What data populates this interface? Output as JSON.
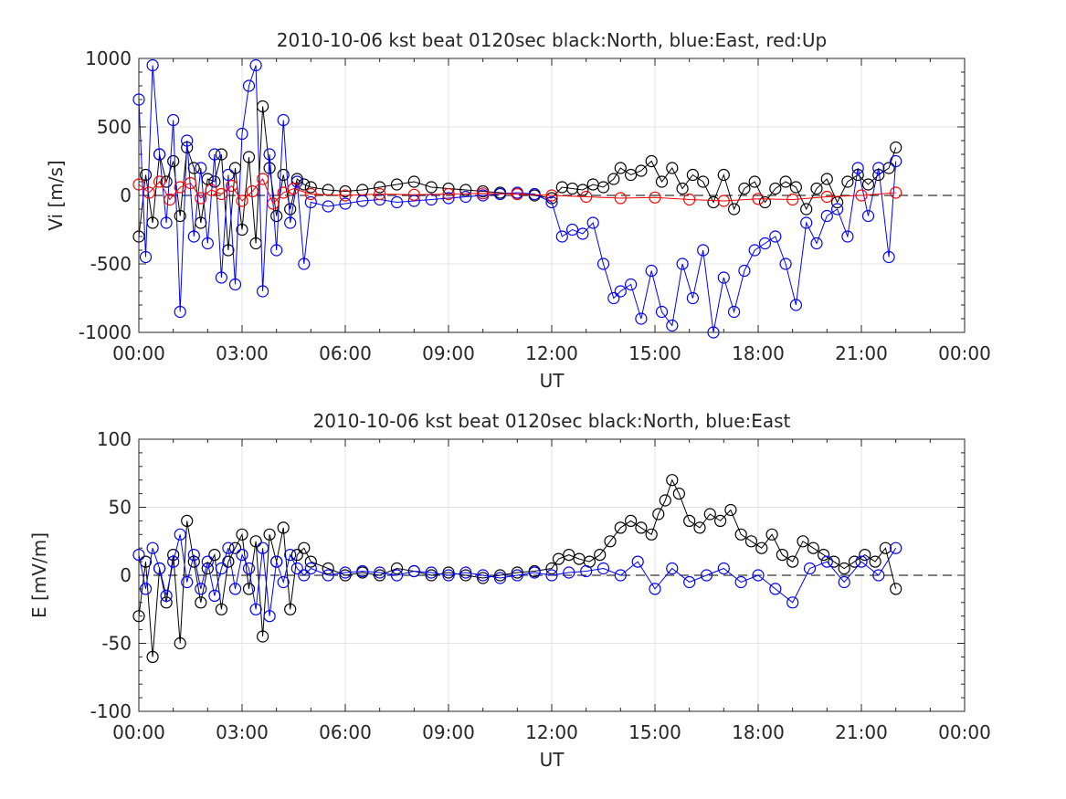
{
  "chart_data": [
    {
      "type": "scatter",
      "title": "2010-10-06 kst beat 0120sec black:North, blue:East, red:Up",
      "xlabel": "UT",
      "ylabel": "Vi [m/s]",
      "xlim_hours": [
        0,
        24
      ],
      "ylim": [
        -1000,
        1000
      ],
      "grid": true,
      "x_tick_labels": [
        "00:00",
        "03:00",
        "06:00",
        "09:00",
        "12:00",
        "15:00",
        "18:00",
        "21:00",
        "00:00"
      ],
      "y_ticks": [
        -1000,
        -500,
        0,
        500,
        1000
      ],
      "y_tick_labels": [
        "-1000",
        "-500",
        "0",
        "500",
        "1000"
      ],
      "zero_line_dashed": true,
      "series": [
        {
          "name": "North",
          "color": "#000000",
          "marker": "circle",
          "x_hours": [
            0.0,
            0.2,
            0.4,
            0.6,
            0.8,
            1.0,
            1.2,
            1.4,
            1.6,
            1.8,
            2.0,
            2.2,
            2.4,
            2.6,
            2.8,
            3.0,
            3.2,
            3.4,
            3.6,
            3.8,
            4.0,
            4.2,
            4.4,
            4.6,
            4.8,
            5.0,
            5.5,
            6.0,
            6.5,
            7.0,
            7.5,
            8.0,
            8.5,
            9.0,
            9.5,
            10.0,
            10.5,
            11.0,
            11.5,
            12.0,
            12.3,
            12.6,
            12.9,
            13.2,
            13.5,
            13.8,
            14.0,
            14.3,
            14.6,
            14.9,
            15.2,
            15.5,
            15.8,
            16.1,
            16.4,
            16.7,
            17.0,
            17.3,
            17.6,
            17.9,
            18.2,
            18.5,
            18.8,
            19.1,
            19.4,
            19.7,
            20.0,
            20.3,
            20.6,
            20.9,
            21.2,
            21.5,
            21.8,
            22.0
          ],
          "values": [
            -300,
            150,
            -200,
            300,
            100,
            250,
            -150,
            350,
            200,
            -200,
            120,
            100,
            300,
            -400,
            200,
            -250,
            280,
            -350,
            650,
            200,
            -150,
            150,
            -100,
            120,
            80,
            60,
            40,
            30,
            40,
            60,
            80,
            100,
            60,
            50,
            40,
            30,
            20,
            10,
            0,
            -20,
            60,
            50,
            40,
            80,
            60,
            120,
            200,
            150,
            180,
            250,
            100,
            200,
            50,
            150,
            100,
            -50,
            150,
            -100,
            50,
            100,
            -50,
            50,
            100,
            60,
            -100,
            50,
            120,
            -50,
            100,
            150,
            80,
            150,
            200,
            350
          ]
        },
        {
          "name": "East",
          "color": "#0000ff",
          "marker": "circle",
          "x_hours": [
            0.0,
            0.2,
            0.4,
            0.6,
            0.8,
            1.0,
            1.2,
            1.4,
            1.6,
            1.8,
            2.0,
            2.2,
            2.4,
            2.6,
            2.8,
            3.0,
            3.2,
            3.4,
            3.6,
            3.8,
            4.0,
            4.2,
            4.4,
            4.6,
            4.8,
            5.0,
            5.5,
            6.0,
            6.5,
            7.0,
            7.5,
            8.0,
            8.5,
            9.0,
            9.5,
            10.0,
            10.5,
            11.0,
            11.5,
            12.0,
            12.3,
            12.6,
            12.9,
            13.2,
            13.5,
            13.8,
            14.0,
            14.3,
            14.6,
            14.9,
            15.2,
            15.5,
            15.8,
            16.1,
            16.4,
            16.7,
            17.0,
            17.3,
            17.6,
            17.9,
            18.2,
            18.5,
            18.8,
            19.1,
            19.4,
            19.7,
            20.0,
            20.3,
            20.6,
            20.9,
            21.2,
            21.5,
            21.8,
            22.0
          ],
          "values": [
            700,
            -450,
            950,
            300,
            -200,
            550,
            -850,
            400,
            -300,
            200,
            -350,
            300,
            -600,
            150,
            -650,
            450,
            800,
            950,
            -700,
            300,
            -400,
            550,
            -200,
            100,
            -500,
            -50,
            -80,
            -60,
            -40,
            -30,
            -50,
            -40,
            -30,
            -20,
            -10,
            0,
            10,
            20,
            10,
            -50,
            -300,
            -250,
            -280,
            -200,
            -500,
            -750,
            -700,
            -650,
            -900,
            -550,
            -850,
            -950,
            -500,
            -750,
            -400,
            -1000,
            -600,
            -850,
            -550,
            -400,
            -350,
            -300,
            -500,
            -800,
            -200,
            -350,
            -150,
            -100,
            -300,
            200,
            -150,
            200,
            -450,
            250
          ]
        },
        {
          "name": "Up",
          "color": "#ff0000",
          "marker": "circle",
          "x_hours": [
            0.0,
            0.3,
            0.6,
            0.9,
            1.2,
            1.5,
            1.8,
            2.1,
            2.4,
            2.7,
            3.0,
            3.3,
            3.6,
            3.9,
            4.2,
            4.5,
            5.0,
            6.0,
            7.0,
            8.0,
            9.0,
            10.0,
            11.0,
            12.0,
            13.0,
            14.0,
            15.0,
            16.0,
            17.0,
            18.0,
            19.0,
            20.0,
            21.0,
            22.0
          ],
          "values": [
            80,
            20,
            100,
            -30,
            60,
            90,
            -20,
            40,
            10,
            70,
            -40,
            30,
            120,
            -60,
            20,
            50,
            10,
            0,
            10,
            5,
            10,
            15,
            10,
            0,
            -10,
            -20,
            -15,
            -30,
            -40,
            -25,
            -30,
            -10,
            0,
            20
          ]
        }
      ]
    },
    {
      "type": "scatter",
      "title": "2010-10-06 kst beat 0120sec black:North, blue:East",
      "xlabel": "UT",
      "ylabel": "E [mV/m]",
      "xlim_hours": [
        0,
        24
      ],
      "ylim": [
        -100,
        100
      ],
      "grid": true,
      "x_tick_labels": [
        "00:00",
        "03:00",
        "06:00",
        "09:00",
        "12:00",
        "15:00",
        "18:00",
        "21:00",
        "00:00"
      ],
      "y_ticks": [
        -100,
        -50,
        0,
        50,
        100
      ],
      "y_tick_labels": [
        "-100",
        "-50",
        "0",
        "50",
        "100"
      ],
      "zero_line_dashed": true,
      "series": [
        {
          "name": "North",
          "color": "#000000",
          "marker": "circle",
          "x_hours": [
            0.0,
            0.2,
            0.4,
            0.6,
            0.8,
            1.0,
            1.2,
            1.4,
            1.6,
            1.8,
            2.0,
            2.2,
            2.4,
            2.6,
            2.8,
            3.0,
            3.2,
            3.4,
            3.6,
            3.8,
            4.0,
            4.2,
            4.4,
            4.6,
            4.8,
            5.0,
            5.5,
            6.0,
            6.5,
            7.0,
            7.5,
            8.0,
            8.5,
            9.0,
            9.5,
            10.0,
            10.5,
            11.0,
            11.5,
            12.0,
            12.2,
            12.5,
            12.8,
            13.1,
            13.4,
            13.7,
            14.0,
            14.3,
            14.6,
            14.9,
            15.1,
            15.3,
            15.5,
            15.7,
            16.0,
            16.3,
            16.6,
            16.9,
            17.2,
            17.5,
            17.8,
            18.1,
            18.4,
            18.7,
            19.0,
            19.3,
            19.6,
            19.9,
            20.2,
            20.5,
            20.8,
            21.1,
            21.4,
            21.7,
            22.0
          ],
          "values": [
            -30,
            10,
            -60,
            5,
            -20,
            15,
            -50,
            40,
            10,
            -20,
            5,
            15,
            -25,
            10,
            20,
            30,
            -10,
            25,
            -45,
            30,
            10,
            35,
            -25,
            15,
            20,
            10,
            5,
            0,
            2,
            0,
            5,
            3,
            0,
            2,
            0,
            -2,
            0,
            2,
            3,
            5,
            12,
            15,
            12,
            10,
            15,
            25,
            35,
            40,
            35,
            30,
            45,
            55,
            70,
            60,
            40,
            35,
            45,
            40,
            48,
            30,
            25,
            20,
            30,
            15,
            10,
            25,
            20,
            15,
            10,
            5,
            10,
            15,
            10,
            20,
            -10
          ]
        },
        {
          "name": "East",
          "color": "#0000ff",
          "marker": "circle",
          "x_hours": [
            0.0,
            0.2,
            0.4,
            0.6,
            0.8,
            1.0,
            1.2,
            1.4,
            1.6,
            1.8,
            2.0,
            2.2,
            2.4,
            2.6,
            2.8,
            3.0,
            3.2,
            3.4,
            3.6,
            3.8,
            4.0,
            4.2,
            4.4,
            4.6,
            4.8,
            5.0,
            5.5,
            6.0,
            6.5,
            7.0,
            7.5,
            8.0,
            8.5,
            9.0,
            9.5,
            10.0,
            10.5,
            11.0,
            11.5,
            12.0,
            12.5,
            13.0,
            13.5,
            14.0,
            14.5,
            15.0,
            15.5,
            16.0,
            16.5,
            17.0,
            17.5,
            18.0,
            18.5,
            19.0,
            19.5,
            20.0,
            20.5,
            21.0,
            21.5,
            22.0
          ],
          "values": [
            15,
            -10,
            20,
            5,
            -15,
            10,
            30,
            -5,
            15,
            -10,
            10,
            -15,
            5,
            20,
            -10,
            15,
            5,
            -25,
            20,
            -30,
            10,
            -5,
            15,
            5,
            0,
            5,
            0,
            2,
            3,
            2,
            0,
            3,
            2,
            0,
            2,
            0,
            -2,
            0,
            2,
            0,
            2,
            3,
            5,
            0,
            10,
            -10,
            5,
            -5,
            0,
            5,
            -5,
            0,
            -10,
            -20,
            5,
            10,
            -5,
            10,
            0,
            20
          ]
        }
      ]
    }
  ]
}
